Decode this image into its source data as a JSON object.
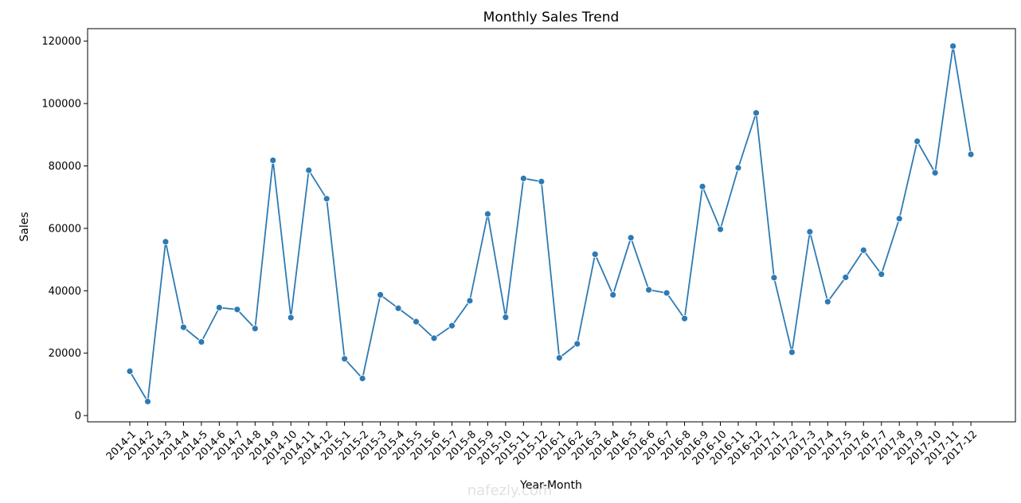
{
  "chart_data": {
    "type": "line",
    "title": "Monthly Sales Trend",
    "xlabel": "Year-Month",
    "ylabel": "Sales",
    "ylim": [
      -2000,
      124000
    ],
    "yticks": [
      0,
      20000,
      40000,
      60000,
      80000,
      100000,
      120000
    ],
    "ytick_labels": [
      "0",
      "20000",
      "40000",
      "60000",
      "80000",
      "100000",
      "120000"
    ],
    "grid": false,
    "legend": "none",
    "marker": "circle",
    "color": "#2e7ab3",
    "categories": [
      "2014-1",
      "2014-2",
      "2014-3",
      "2014-4",
      "2014-5",
      "2014-6",
      "2014-7",
      "2014-8",
      "2014-9",
      "2014-10",
      "2014-11",
      "2014-12",
      "2015-1",
      "2015-2",
      "2015-3",
      "2015-4",
      "2015-5",
      "2015-6",
      "2015-7",
      "2015-8",
      "2015-9",
      "2015-10",
      "2015-11",
      "2015-12",
      "2016-1",
      "2016-2",
      "2016-3",
      "2016-4",
      "2016-5",
      "2016-6",
      "2016-7",
      "2016-8",
      "2016-9",
      "2016-10",
      "2016-11",
      "2016-12",
      "2017-1",
      "2017-2",
      "2017-3",
      "2017-4",
      "2017-5",
      "2017-6",
      "2017-7",
      "2017-8",
      "2017-9",
      "2017-10",
      "2017-11",
      "2017-12"
    ],
    "values": [
      14200,
      4500,
      55700,
      28300,
      23600,
      34600,
      34000,
      27900,
      81800,
      31400,
      78600,
      69500,
      18200,
      11900,
      38700,
      34400,
      30100,
      24800,
      28800,
      36800,
      64600,
      31500,
      76000,
      75000,
      18500,
      23000,
      51700,
      38700,
      57000,
      40300,
      39300,
      31100,
      73400,
      59700,
      79400,
      97000,
      44200,
      20300,
      58900,
      36500,
      44300,
      53000,
      45300,
      63100,
      87900,
      77800,
      118400,
      83700
    ],
    "watermark": "nafezly.com"
  }
}
